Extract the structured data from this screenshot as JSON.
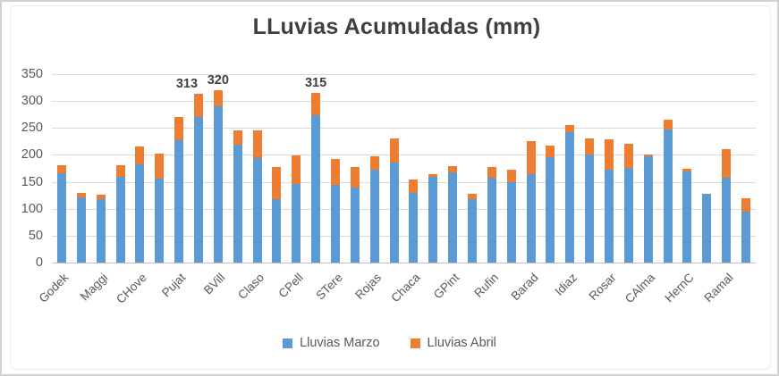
{
  "chart_data": {
    "type": "bar",
    "stacked": true,
    "title": "LLuvias Acumuladas (mm)",
    "xlabel": "",
    "ylabel": "",
    "ylim": [
      0,
      350
    ],
    "y_ticks": [
      0,
      50,
      100,
      150,
      200,
      250,
      300,
      350
    ],
    "grid": true,
    "legend_position": "bottom",
    "x_label_interval": 2,
    "series": [
      {
        "name": "Lluvias Marzo",
        "color": "#5B9BD5"
      },
      {
        "name": "Lluvias Abril",
        "color": "#ED7D31"
      }
    ],
    "bars": [
      {
        "tick": "Godek",
        "marzo": 166,
        "abril": 15
      },
      {
        "marzo": 121,
        "abril": 8
      },
      {
        "tick": "Maggi",
        "marzo": 118,
        "abril": 9
      },
      {
        "marzo": 159,
        "abril": 21
      },
      {
        "tick": "CHove",
        "marzo": 183,
        "abril": 32
      },
      {
        "marzo": 156,
        "abril": 47
      },
      {
        "tick": "Pujat",
        "marzo": 228,
        "abril": 42
      },
      {
        "marzo": 270,
        "abril": 43,
        "label": "313"
      },
      {
        "tick": "BVill",
        "marzo": 290,
        "abril": 30,
        "label": "320"
      },
      {
        "marzo": 219,
        "abril": 26
      },
      {
        "tick": "Claso",
        "marzo": 194,
        "abril": 51
      },
      {
        "marzo": 118,
        "abril": 60
      },
      {
        "tick": "CPell",
        "marzo": 146,
        "abril": 53
      },
      {
        "marzo": 273,
        "abril": 42,
        "label": "315"
      },
      {
        "tick": "STere",
        "marzo": 145,
        "abril": 48
      },
      {
        "marzo": 139,
        "abril": 38
      },
      {
        "tick": "Rojas",
        "marzo": 172,
        "abril": 26
      },
      {
        "marzo": 186,
        "abril": 45
      },
      {
        "tick": "Chaca",
        "marzo": 129,
        "abril": 26
      },
      {
        "marzo": 160,
        "abril": 5
      },
      {
        "tick": "GPint",
        "marzo": 167,
        "abril": 12
      },
      {
        "marzo": 118,
        "abril": 10
      },
      {
        "tick": "Rufin",
        "marzo": 158,
        "abril": 20
      },
      {
        "marzo": 150,
        "abril": 23
      },
      {
        "tick": "Barad",
        "marzo": 165,
        "abril": 60
      },
      {
        "marzo": 195,
        "abril": 22
      },
      {
        "tick": "Idiaz",
        "marzo": 242,
        "abril": 13
      },
      {
        "marzo": 200,
        "abril": 30
      },
      {
        "tick": "Rosar",
        "marzo": 173,
        "abril": 56
      },
      {
        "marzo": 176,
        "abril": 45
      },
      {
        "tick": "CAlma",
        "marzo": 197,
        "abril": 3
      },
      {
        "marzo": 248,
        "abril": 17
      },
      {
        "tick": "HernC",
        "marzo": 170,
        "abril": 5
      },
      {
        "marzo": 127,
        "abril": 0
      },
      {
        "tick": "Ramal",
        "marzo": 157,
        "abril": 54
      },
      {
        "marzo": 95,
        "abril": 25
      }
    ],
    "colors": {
      "title": "#404040",
      "axis_text": "#595959",
      "gridline": "#d9d9d9",
      "axis_line": "#bfbfbf",
      "data_label": "#3f3f3f"
    }
  }
}
